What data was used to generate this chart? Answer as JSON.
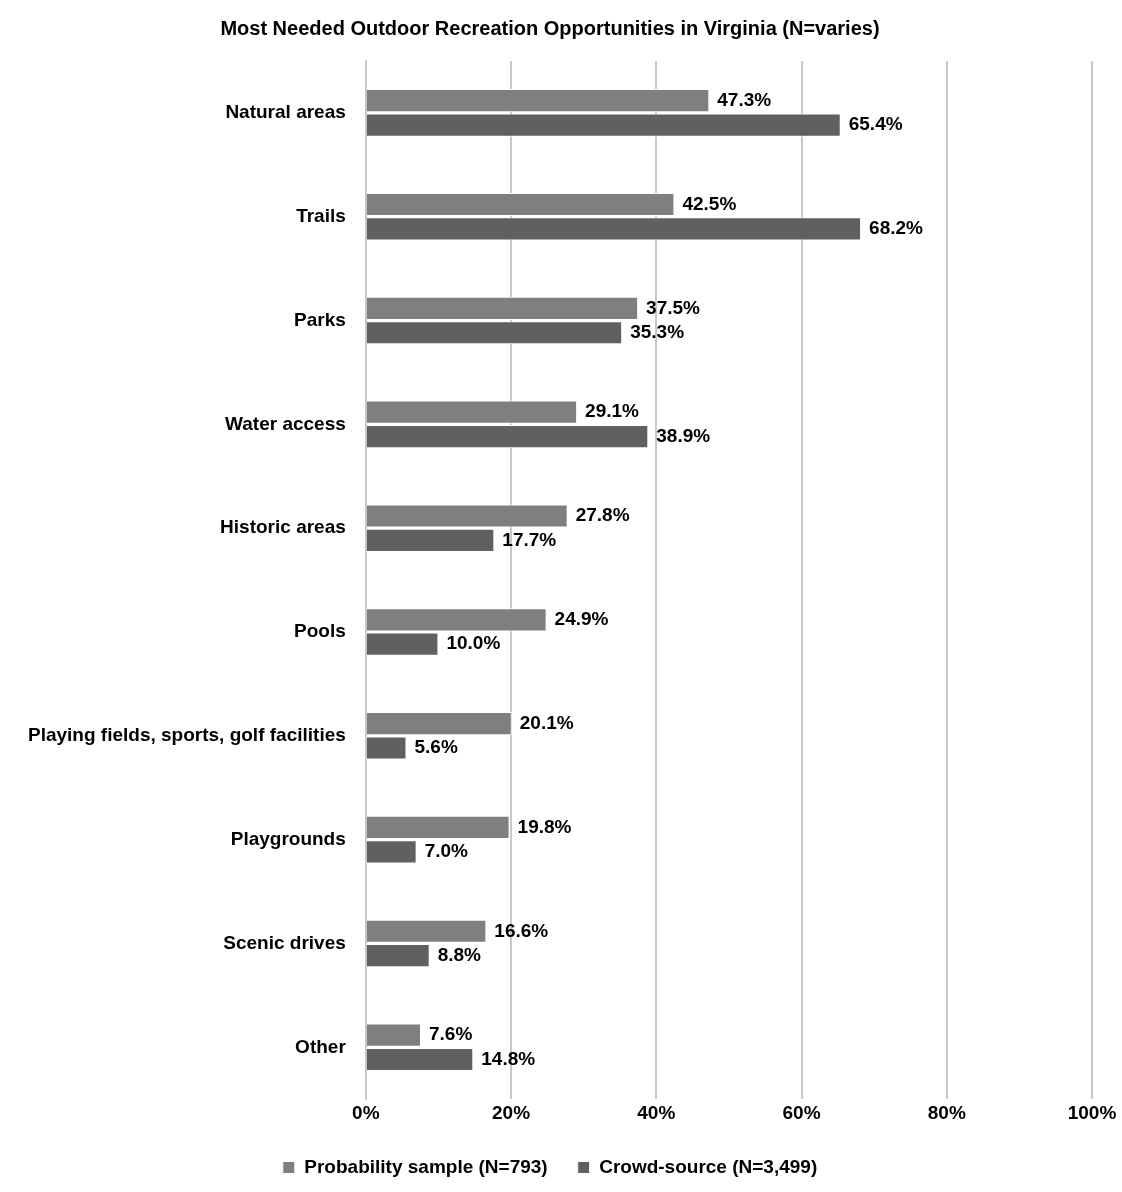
{
  "chart_data": {
    "type": "bar",
    "orientation": "horizontal",
    "title": "Most Needed Outdoor Recreation Opportunities in Virginia (N=varies)",
    "categories": [
      "Natural areas",
      "Trails",
      "Parks",
      "Water access",
      "Historic areas",
      "Pools",
      "Playing fields, sports, golf facilities",
      "Playgrounds",
      "Scenic drives",
      "Other"
    ],
    "series": [
      {
        "name": "Probability sample (N=793)",
        "color": "#7f7f7f",
        "values": [
          47.3,
          42.5,
          37.5,
          29.1,
          27.8,
          24.9,
          20.1,
          19.8,
          16.6,
          7.6
        ],
        "value_labels": [
          "47.3%",
          "42.5%",
          "37.5%",
          "29.1%",
          "27.8%",
          "24.9%",
          "20.1%",
          "19.8%",
          "16.6%",
          "7.6%"
        ]
      },
      {
        "name": "Crowd-source (N=3,499)",
        "color": "#606060",
        "values": [
          65.4,
          68.2,
          35.3,
          38.9,
          17.7,
          10.0,
          5.6,
          7.0,
          8.8,
          14.8
        ],
        "value_labels": [
          "65.4%",
          "68.2%",
          "35.3%",
          "38.9%",
          "17.7%",
          "10.0%",
          "5.6%",
          "7.0%",
          "8.8%",
          "14.8%"
        ]
      }
    ],
    "xlim": [
      0,
      100
    ],
    "xticks": [
      {
        "value": 0,
        "label": "0%"
      },
      {
        "value": 20,
        "label": "20%"
      },
      {
        "value": 40,
        "label": "40%"
      },
      {
        "value": 60,
        "label": "60%"
      },
      {
        "value": 80,
        "label": "80%"
      },
      {
        "value": 100,
        "label": "100%"
      }
    ],
    "grid": "x",
    "legend": "bottom"
  }
}
